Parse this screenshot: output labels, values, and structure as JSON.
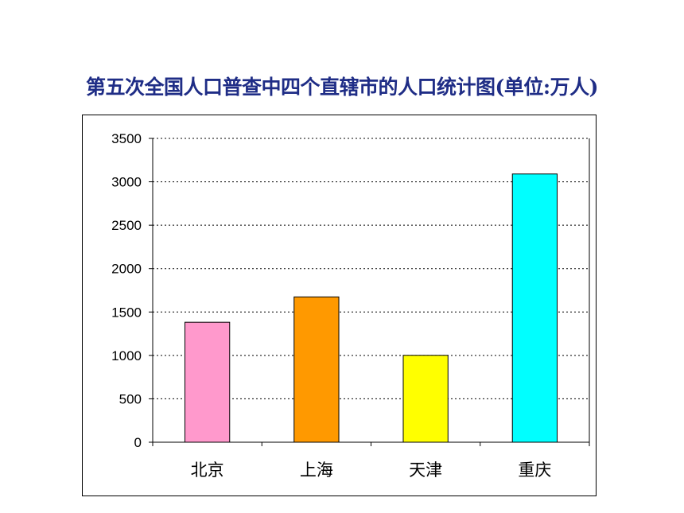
{
  "chart_data": {
    "type": "bar",
    "title": "第五次全国人口普查中四个直辖市的人口统计图(单位:万人)",
    "categories": [
      "北京",
      "上海",
      "天津",
      "重庆"
    ],
    "values": [
      1382,
      1674,
      1001,
      3090
    ],
    "colors": [
      "#ff99cc",
      "#ff9900",
      "#ffff00",
      "#00ffff"
    ],
    "ylim": [
      0,
      3500
    ],
    "yticks": [
      0,
      500,
      1000,
      1500,
      2000,
      2500,
      3000,
      3500
    ],
    "grid": true,
    "legend": "none",
    "xlabel": "",
    "ylabel": ""
  }
}
